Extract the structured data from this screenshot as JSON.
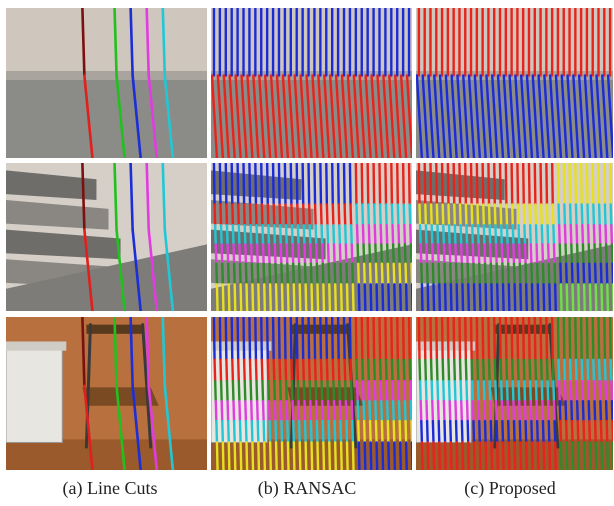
{
  "figure": {
    "captions": {
      "a": "(a) Line Cuts",
      "b": "(b) RANSAC",
      "c": "(c) Proposed"
    },
    "rows": [
      {
        "scene": "wall-floor",
        "wall_color": "#cfc6bd",
        "floor_color": "#8b8b88",
        "panels": [
          {
            "method": "line-cuts",
            "line_colors": [
              "#e0201c",
              "#22c01e",
              "#1c2fd6",
              "#e03ce0",
              "#22c7d6"
            ]
          },
          {
            "method": "ransac",
            "line_colors": [
              "#1a2bd8",
              "#e8231c"
            ]
          },
          {
            "method": "proposed",
            "line_colors": [
              "#e8231c",
              "#1a2bd8"
            ]
          }
        ]
      },
      {
        "scene": "staircase",
        "wall_color": "#d5cfc8",
        "floor_color": "#7e7c78",
        "panels": [
          {
            "method": "line-cuts",
            "line_colors": [
              "#e0201c",
              "#22c01e",
              "#1c2fd6",
              "#e03ce0",
              "#22c7d6"
            ]
          },
          {
            "method": "ransac",
            "line_colors": [
              "#1a2bd8",
              "#e8231c",
              "#22c7d6",
              "#e03ce0",
              "#2e8b2a",
              "#e6e020"
            ]
          },
          {
            "method": "proposed",
            "line_colors": [
              "#e8231c",
              "#e6e020",
              "#22c7d6",
              "#e03ce0",
              "#2e8b2a",
              "#1a2bd8",
              "#6ee04a"
            ]
          }
        ]
      },
      {
        "scene": "chair",
        "wall_color": "#b8703e",
        "floor_color": "#9a5a2c",
        "panels": [
          {
            "method": "line-cuts",
            "line_colors": [
              "#e0201c",
              "#22c01e",
              "#1c2fd6",
              "#e03ce0",
              "#22c7d6"
            ]
          },
          {
            "method": "ransac",
            "line_colors": [
              "#1a2bd8",
              "#e8231c",
              "#2e8b2a",
              "#e03ce0",
              "#22c7d6",
              "#e6e020"
            ]
          },
          {
            "method": "proposed",
            "line_colors": [
              "#e8231c",
              "#2e8b2a",
              "#22c7d6",
              "#e03ce0",
              "#1a2bd8"
            ]
          }
        ]
      }
    ]
  }
}
